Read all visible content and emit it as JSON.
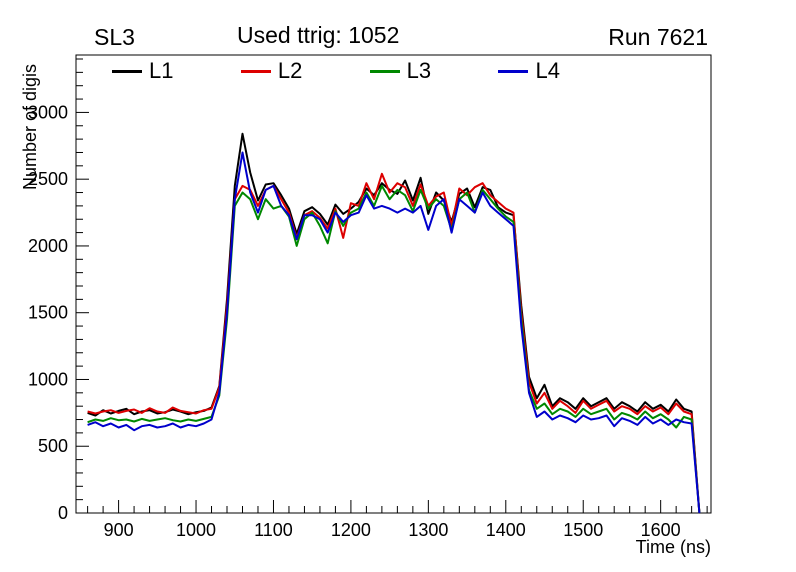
{
  "chart_data": {
    "type": "line",
    "title": "Used ttrig: 1052",
    "title_left": "SL3",
    "title_right": "Run 7621",
    "xlabel": "Time (ns)",
    "ylabel": "Number of digis",
    "xlim": [
      845,
      1665
    ],
    "ylim": [
      0,
      3430
    ],
    "x_ticks": [
      900,
      1000,
      1100,
      1200,
      1300,
      1400,
      1500,
      1600
    ],
    "y_ticks": [
      0,
      500,
      1000,
      1500,
      2000,
      2500,
      3000
    ],
    "x_minor_step": 20,
    "y_minor_step": 100,
    "grid": false,
    "legend_position": "top-inside-horizontal",
    "x": [
      860,
      870,
      880,
      890,
      900,
      910,
      920,
      930,
      940,
      950,
      960,
      970,
      980,
      990,
      1000,
      1010,
      1020,
      1030,
      1040,
      1050,
      1060,
      1070,
      1080,
      1090,
      1100,
      1110,
      1120,
      1130,
      1140,
      1150,
      1160,
      1170,
      1180,
      1190,
      1200,
      1210,
      1220,
      1230,
      1240,
      1250,
      1260,
      1270,
      1280,
      1290,
      1300,
      1310,
      1320,
      1330,
      1340,
      1350,
      1360,
      1370,
      1380,
      1390,
      1400,
      1410,
      1420,
      1430,
      1440,
      1450,
      1460,
      1470,
      1480,
      1490,
      1500,
      1510,
      1520,
      1530,
      1540,
      1550,
      1560,
      1570,
      1580,
      1590,
      1600,
      1610,
      1620,
      1630,
      1640,
      1650
    ],
    "series": [
      {
        "name": "L1",
        "color": "#000000",
        "values": [
          750,
          730,
          770,
          745,
          765,
          780,
          740,
          760,
          770,
          745,
          755,
          775,
          760,
          740,
          755,
          765,
          790,
          950,
          1600,
          2450,
          2840,
          2550,
          2340,
          2460,
          2470,
          2380,
          2280,
          2090,
          2260,
          2290,
          2240,
          2160,
          2310,
          2240,
          2280,
          2330,
          2430,
          2380,
          2470,
          2420,
          2390,
          2490,
          2340,
          2510,
          2240,
          2400,
          2340,
          2180,
          2390,
          2430,
          2290,
          2440,
          2420,
          2290,
          2250,
          2230,
          1550,
          1020,
          860,
          960,
          800,
          860,
          830,
          780,
          860,
          800,
          830,
          860,
          780,
          830,
          800,
          760,
          830,
          780,
          810,
          760,
          850,
          780,
          760,
          0
        ]
      },
      {
        "name": "L2",
        "color": "#dd0000",
        "values": [
          760,
          745,
          760,
          770,
          750,
          765,
          775,
          750,
          785,
          760,
          750,
          790,
          765,
          755,
          745,
          770,
          780,
          940,
          1550,
          2350,
          2450,
          2420,
          2300,
          2420,
          2450,
          2350,
          2250,
          2060,
          2230,
          2260,
          2210,
          2130,
          2280,
          2060,
          2320,
          2300,
          2470,
          2350,
          2540,
          2400,
          2470,
          2440,
          2300,
          2460,
          2300,
          2370,
          2400,
          2150,
          2430,
          2380,
          2440,
          2470,
          2380,
          2330,
          2280,
          2250,
          1500,
          980,
          820,
          900,
          780,
          840,
          800,
          750,
          840,
          780,
          810,
          840,
          760,
          800,
          780,
          740,
          800,
          760,
          790,
          740,
          820,
          760,
          740,
          0
        ]
      },
      {
        "name": "L3",
        "color": "#008800",
        "values": [
          680,
          700,
          690,
          710,
          695,
          700,
          685,
          705,
          690,
          700,
          710,
          695,
          685,
          700,
          690,
          705,
          720,
          880,
          1450,
          2300,
          2400,
          2350,
          2200,
          2350,
          2280,
          2300,
          2220,
          2000,
          2200,
          2250,
          2150,
          2020,
          2260,
          2150,
          2250,
          2280,
          2400,
          2300,
          2450,
          2350,
          2420,
          2380,
          2260,
          2420,
          2280,
          2350,
          2300,
          2120,
          2350,
          2400,
          2250,
          2420,
          2350,
          2280,
          2220,
          2180,
          1450,
          920,
          780,
          820,
          740,
          780,
          760,
          720,
          780,
          740,
          760,
          780,
          700,
          750,
          730,
          700,
          760,
          710,
          740,
          700,
          640,
          720,
          700,
          0
        ]
      },
      {
        "name": "L4",
        "color": "#0000cc",
        "values": [
          660,
          680,
          650,
          670,
          640,
          660,
          620,
          650,
          660,
          640,
          650,
          670,
          640,
          660,
          650,
          670,
          700,
          900,
          1500,
          2350,
          2700,
          2400,
          2250,
          2420,
          2450,
          2300,
          2230,
          2050,
          2230,
          2230,
          2200,
          2100,
          2250,
          2180,
          2230,
          2250,
          2380,
          2280,
          2300,
          2280,
          2250,
          2280,
          2250,
          2300,
          2120,
          2300,
          2350,
          2100,
          2350,
          2300,
          2250,
          2400,
          2300,
          2250,
          2200,
          2150,
          1400,
          900,
          720,
          760,
          700,
          730,
          710,
          680,
          730,
          700,
          710,
          730,
          650,
          710,
          690,
          660,
          720,
          670,
          700,
          660,
          700,
          680,
          670,
          0
        ]
      }
    ]
  }
}
